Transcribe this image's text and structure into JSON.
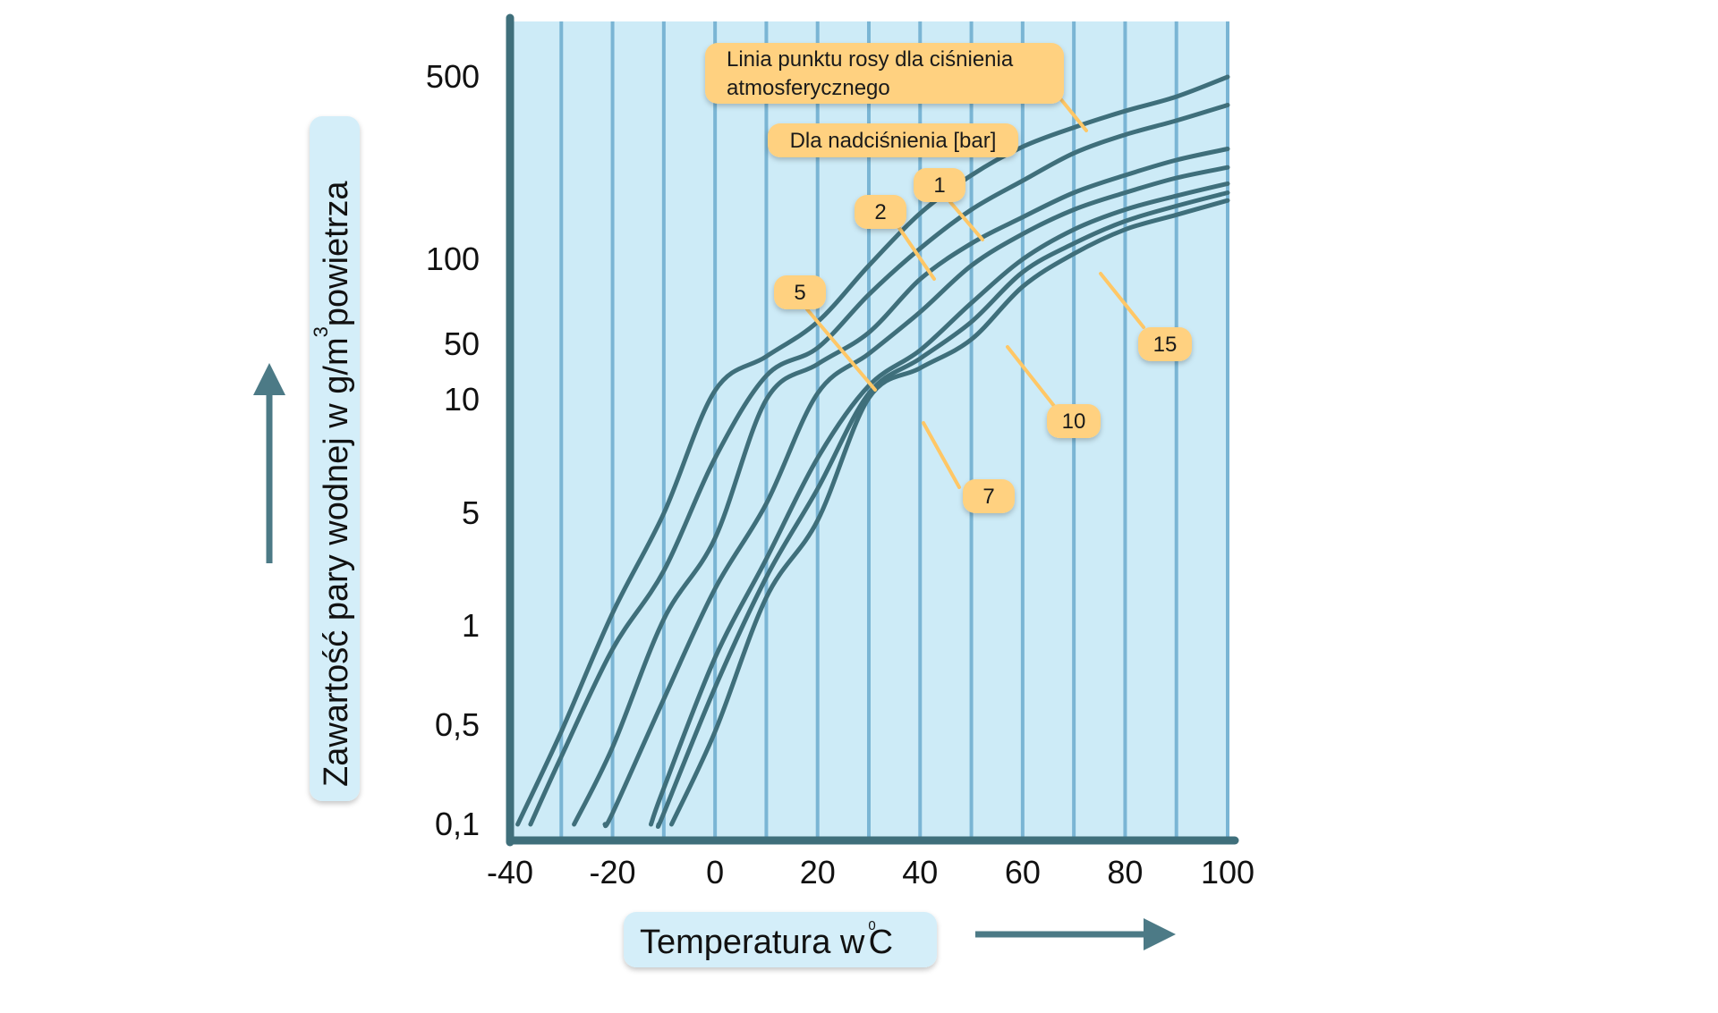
{
  "colors": {
    "plot_background": "#cdebf7",
    "vertical_gridline": "#7ab5d4",
    "curve": "#3f6f7b",
    "axis": "#3f6f7b",
    "label_box": "#ffd180",
    "title_box": "#d4eef9",
    "arrow": "#4c7a86"
  },
  "chart_data": {
    "type": "line",
    "x_scale": "linear",
    "y_scale": "nonuniform-log",
    "xlim": [
      -40,
      100
    ],
    "x_ticks": [
      -40,
      -20,
      0,
      20,
      40,
      60,
      80,
      100
    ],
    "x_tick_labels": [
      "-40",
      "-20",
      "0",
      "20",
      "40",
      "60",
      "80",
      "100"
    ],
    "y_ticks": [
      0.1,
      0.5,
      1,
      5,
      10,
      50,
      100,
      500
    ],
    "y_tick_labels": [
      "0,1",
      "0,5",
      "1",
      "5",
      "10",
      "50",
      "100",
      "500"
    ],
    "vertical_grid_x": [
      -30,
      -20,
      -10,
      0,
      10,
      20,
      30,
      40,
      50,
      60,
      70,
      80,
      90,
      100
    ],
    "xlabel": "Temperatura w °C",
    "xlabel_parts": {
      "text": "Temperatura w",
      "degree": "0",
      "unit": "C"
    },
    "ylabel": "Zawartość pary wodnej w g/m³ powietrza",
    "ylabel_parts": {
      "before": "Zawartość pary wodnej w g/m",
      "superscript": "3",
      "after": "powietrza"
    },
    "annotations": {
      "atmospheric": "Linia punktu rosy dla ciśnienia atmosferycznego",
      "atmospheric_line1": "Linia punktu rosy dla ciśnienia",
      "atmospheric_line2": "atmosferycznego",
      "overpressure": "Dla nadciśnienia [bar]"
    },
    "series": [
      {
        "name": "ciśnienie atmosferyczne",
        "label": "",
        "x": [
          -38.5,
          -30,
          -20,
          -10,
          0,
          10,
          20,
          30,
          40,
          50,
          60,
          70,
          80,
          90,
          100
        ],
        "y": [
          0.1,
          0.45,
          1.2,
          5,
          13,
          35,
          60,
          95,
          150,
          210,
          270,
          320,
          370,
          420,
          500
        ]
      },
      {
        "name": "1 bar",
        "label": "1",
        "x": [
          -36,
          -30,
          -20,
          -10,
          0,
          10,
          20,
          30,
          40,
          50,
          60,
          70,
          80,
          90,
          100
        ],
        "y": [
          0.1,
          0.3,
          0.85,
          2.2,
          7,
          20,
          45,
          75,
          110,
          155,
          200,
          255,
          300,
          340,
          390
        ]
      },
      {
        "name": "2 bar",
        "label": "2",
        "x": [
          -27.5,
          -20,
          -10,
          0,
          10,
          20,
          30,
          40,
          50,
          60,
          70,
          80,
          90,
          100
        ],
        "y": [
          0.1,
          0.35,
          1.1,
          3.5,
          10,
          28,
          55,
          85,
          115,
          145,
          180,
          210,
          240,
          265
        ]
      },
      {
        "name": "5 bar",
        "label": "5",
        "x": [
          -21.5,
          -20,
          -10,
          0,
          10,
          20,
          30,
          40,
          50,
          60,
          70,
          80,
          90,
          100
        ],
        "y": [
          0.1,
          0.12,
          0.6,
          1.7,
          5.3,
          12,
          38,
          65,
          95,
          125,
          155,
          180,
          205,
          225
        ]
      },
      {
        "name": "7 bar",
        "label": "7",
        "x": [
          -12.5,
          -10,
          0,
          10,
          20,
          30,
          40,
          50,
          60,
          70,
          80,
          90,
          100
        ],
        "y": [
          0.1,
          0.18,
          0.8,
          2.6,
          7,
          15,
          42,
          70,
          100,
          130,
          155,
          175,
          195
        ]
      },
      {
        "name": "10 bar",
        "label": "10",
        "x": [
          -11,
          -10,
          0,
          10,
          20,
          30,
          40,
          50,
          60,
          70,
          80,
          90,
          100
        ],
        "y": [
          0.1,
          0.12,
          0.65,
          2,
          5.8,
          12,
          33,
          60,
          90,
          115,
          140,
          160,
          180
        ]
      },
      {
        "name": "15 bar",
        "label": "15",
        "x": [
          -8.5,
          0,
          10,
          20,
          30,
          40,
          50,
          60,
          70,
          80,
          90,
          100
        ],
        "y": [
          0.1,
          0.45,
          1.5,
          4.5,
          10.5,
          25,
          52,
          80,
          105,
          130,
          148,
          168
        ]
      }
    ]
  }
}
